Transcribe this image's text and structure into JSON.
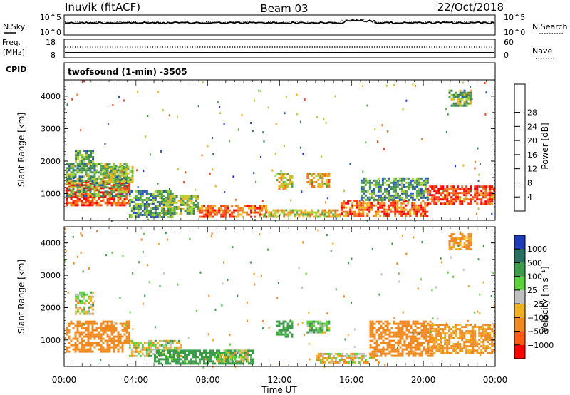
{
  "header": {
    "station": "Inuvik (fitACF)",
    "beam": "Beam 03",
    "date": "22/Oct/2018"
  },
  "summary_panels": {
    "nsky": {
      "label": "N.Sky",
      "left_ticks": [
        "10^5",
        "10^0"
      ],
      "right_label": "N.Search",
      "right_ticks": [
        "10^5",
        "10^0"
      ]
    },
    "freq": {
      "label_line1": "Freq.",
      "label_line2": "[MHz]",
      "left_ticks": [
        "18",
        "8"
      ],
      "right_label": "Nave",
      "right_ticks": [
        "60",
        "0"
      ]
    },
    "cpid_label": "CPID",
    "cpid_text": "twofsound (1-min) -3505"
  },
  "chart_data": [
    {
      "type": "heatmap",
      "name": "power-panel",
      "ylabel": "Slant Range [km]",
      "xlabel": "",
      "x_ticks": [
        "00:00",
        "04:00",
        "08:00",
        "12:00",
        "16:00",
        "20:00",
        "00:00"
      ],
      "x_range_hours": [
        0,
        24
      ],
      "y_ticks": [
        1000,
        2000,
        3000,
        4000
      ],
      "ylim": [
        180,
        4500
      ],
      "colorbar": {
        "label": "Power [dB]",
        "ticks": [
          "4",
          "8",
          "12",
          "16",
          "20",
          "24",
          "28"
        ],
        "colors": [
          "#1432ff",
          "#2a55bc",
          "#3f8160",
          "#55a845",
          "#a9d238",
          "#f0b020",
          "#f07820",
          "#ff3b12",
          "#ff0000"
        ]
      },
      "regions": [
        {
          "t0": 0.1,
          "t1": 3.6,
          "r0": 640,
          "r1": 1400,
          "value": 28
        },
        {
          "t0": 0.1,
          "t1": 3.5,
          "r0": 950,
          "r1": 1950,
          "value": 12
        },
        {
          "t0": 0.6,
          "t1": 1.6,
          "r0": 1850,
          "r1": 2350,
          "value": 10
        },
        {
          "t0": 2.2,
          "t1": 3.8,
          "r0": 1350,
          "r1": 1850,
          "value": 16
        },
        {
          "t0": 3.6,
          "t1": 6.0,
          "r0": 300,
          "r1": 1100,
          "value": 10
        },
        {
          "t0": 5.5,
          "t1": 7.5,
          "r0": 380,
          "r1": 950,
          "value": 14
        },
        {
          "t0": 7.5,
          "t1": 11.2,
          "r0": 300,
          "r1": 650,
          "value": 26
        },
        {
          "t0": 11.0,
          "t1": 15.5,
          "r0": 280,
          "r1": 520,
          "value": 18
        },
        {
          "t0": 11.8,
          "t1": 12.7,
          "r0": 1150,
          "r1": 1650,
          "value": 18
        },
        {
          "t0": 13.5,
          "t1": 14.8,
          "r0": 1250,
          "r1": 1650,
          "value": 20
        },
        {
          "t0": 15.4,
          "t1": 20.2,
          "r0": 280,
          "r1": 800,
          "value": 26
        },
        {
          "t0": 16.5,
          "t1": 20.2,
          "r0": 800,
          "r1": 1500,
          "value": 10
        },
        {
          "t0": 20.2,
          "t1": 23.9,
          "r0": 700,
          "r1": 1250,
          "value": 28
        },
        {
          "t0": 21.4,
          "t1": 22.6,
          "r0": 3700,
          "r1": 4200,
          "value": 12
        }
      ]
    },
    {
      "type": "heatmap",
      "name": "velocity-panel",
      "ylabel": "Slant Range [km]",
      "xlabel": "Time UT",
      "x_ticks": [
        "00:00",
        "04:00",
        "08:00",
        "12:00",
        "16:00",
        "20:00",
        "00:00"
      ],
      "x_range_hours": [
        0,
        24
      ],
      "y_ticks": [
        1000,
        2000,
        3000,
        4000
      ],
      "ylim": [
        180,
        4500
      ],
      "colorbar": {
        "label": "Velocity [m s⁻¹]",
        "ticks": [
          "1000",
          "500",
          "100",
          "25",
          "−25",
          "−100",
          "−500",
          "−1000"
        ],
        "colors": [
          "#1c3cba",
          "#2a7060",
          "#3c9c4a",
          "#5cd23a",
          "#c0c0c0",
          "#f0b020",
          "#f08a20",
          "#ff5a10",
          "#ff0000"
        ]
      },
      "regions": [
        {
          "t0": 0.1,
          "t1": 3.6,
          "r0": 640,
          "r1": 1600,
          "value": -300
        },
        {
          "t0": 0.6,
          "t1": 1.6,
          "r0": 1800,
          "r1": 2500,
          "value": 0
        },
        {
          "t0": 3.6,
          "t1": 6.5,
          "r0": 500,
          "r1": 1000,
          "value": 0
        },
        {
          "t0": 5.0,
          "t1": 10.5,
          "r0": 300,
          "r1": 700,
          "value": 200
        },
        {
          "t0": 8.5,
          "t1": 10.2,
          "r0": 350,
          "r1": 700,
          "value": 0
        },
        {
          "t0": 11.8,
          "t1": 12.7,
          "r0": 1100,
          "r1": 1600,
          "value": 200
        },
        {
          "t0": 13.5,
          "t1": 14.8,
          "r0": 1250,
          "r1": 1600,
          "value": 80
        },
        {
          "t0": 14.0,
          "t1": 17.5,
          "r0": 280,
          "r1": 600,
          "value": -50
        },
        {
          "t0": 17.0,
          "t1": 20.5,
          "r0": 500,
          "r1": 1600,
          "value": -300
        },
        {
          "t0": 20.2,
          "t1": 23.9,
          "r0": 600,
          "r1": 1500,
          "value": -150
        },
        {
          "t0": 21.4,
          "t1": 22.6,
          "r0": 3800,
          "r1": 4300,
          "value": -150
        }
      ]
    }
  ]
}
